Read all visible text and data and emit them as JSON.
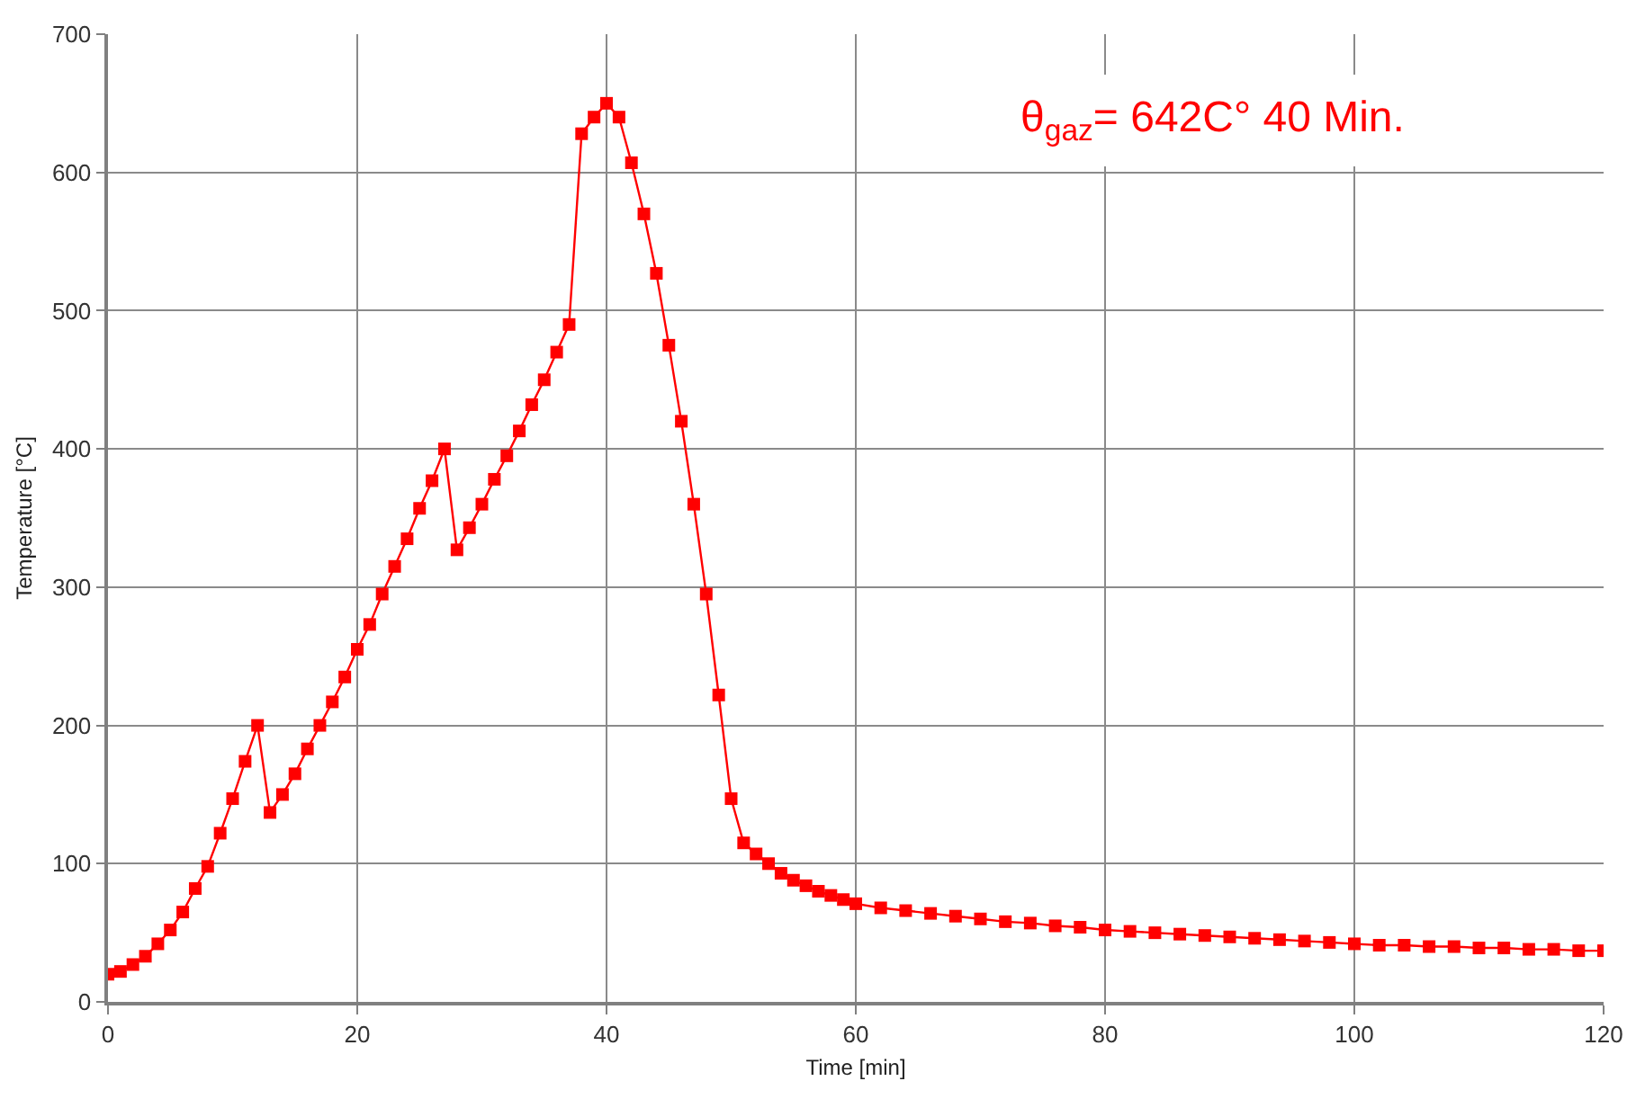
{
  "chart_data": {
    "type": "line",
    "xlabel": "Time [min]",
    "ylabel": "Temperature [°C]",
    "annotations": [
      "θ$_{gaz}$= 642C° 40 Min."
    ],
    "x": [
      0,
      1,
      2,
      3,
      4,
      5,
      6,
      7,
      8,
      9,
      10,
      11,
      12,
      13,
      14,
      15,
      16,
      17,
      18,
      19,
      20,
      21,
      22,
      23,
      24,
      25,
      26,
      27,
      28,
      29,
      30,
      31,
      32,
      33,
      34,
      35,
      36,
      37,
      38,
      39,
      40,
      41,
      42,
      43,
      44,
      45,
      46,
      47,
      48,
      49,
      50,
      51,
      52,
      53,
      54,
      55,
      56,
      57,
      58,
      59,
      60,
      62,
      64,
      66,
      68,
      70,
      72,
      74,
      76,
      78,
      80,
      82,
      84,
      86,
      88,
      90,
      92,
      94,
      96,
      98,
      100,
      102,
      104,
      106,
      108,
      110,
      112,
      114,
      116,
      118,
      120
    ],
    "series": [
      {
        "color": "#ff0000",
        "values": [
          20,
          22,
          27,
          33,
          42,
          52,
          65,
          82,
          98,
          122,
          147,
          174,
          200,
          137,
          150,
          165,
          183,
          200,
          217,
          235,
          255,
          273,
          295,
          315,
          335,
          357,
          377,
          400,
          327,
          343,
          360,
          378,
          395,
          413,
          432,
          450,
          470,
          490,
          628,
          640,
          650,
          640,
          607,
          570,
          527,
          475,
          420,
          360,
          295,
          222,
          147,
          115,
          107,
          100,
          93,
          88,
          84,
          80,
          77,
          74,
          71,
          68,
          66,
          64,
          62,
          60,
          58,
          57,
          55,
          54,
          52,
          51,
          50,
          49,
          48,
          47,
          46,
          45,
          44,
          43,
          42,
          41,
          41,
          40,
          40,
          39,
          39,
          38,
          38,
          37,
          37
        ]
      }
    ],
    "xlim": [
      0,
      120
    ],
    "xticks": [
      0,
      20,
      40,
      60,
      80,
      100,
      120
    ],
    "ylim": [
      0,
      700
    ],
    "yticks": [
      0,
      100,
      200,
      300,
      400,
      500,
      600,
      700
    ],
    "grid": true,
    "marker": "square",
    "line_style": "solid"
  }
}
